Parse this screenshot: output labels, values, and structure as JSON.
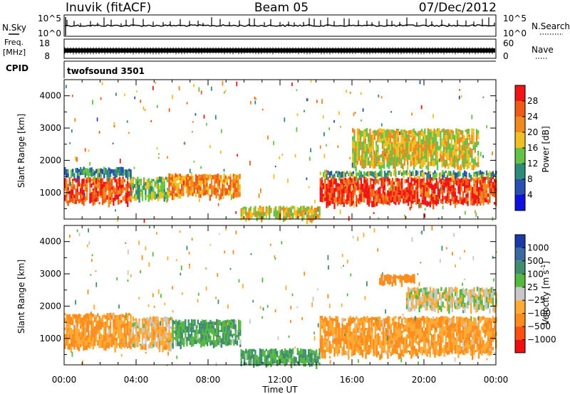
{
  "header": {
    "station": "Inuvik (fitACF)",
    "beam": "Beam 05",
    "date": "07/Dec/2012"
  },
  "param_panels": {
    "nsky": {
      "label": "N.Sky",
      "ticks": [
        "10^5",
        "10^0"
      ],
      "right_label": "N.Search",
      "right_ticks": [
        "10^5",
        "10^0"
      ]
    },
    "freq": {
      "label_top": "Freq.",
      "label_bottom": "[MHz]",
      "ticks": [
        "18",
        "8"
      ],
      "right_label": "Nave",
      "right_ticks": [
        "60",
        "0"
      ]
    },
    "cpid": {
      "label": "CPID",
      "value": "twofsound 3501"
    }
  },
  "axes": {
    "ylabel": "Slant Range [km]",
    "xlabel": "Time UT",
    "yticks": [
      "1000",
      "2000",
      "3000",
      "4000"
    ],
    "xticks": [
      "00:00",
      "04:00",
      "08:00",
      "12:00",
      "16:00",
      "20:00",
      "00:00"
    ]
  },
  "colorbars": {
    "power": {
      "label": "Power [dB]",
      "ticks": [
        "4",
        "8",
        "12",
        "16",
        "20",
        "24",
        "28"
      ],
      "colors": [
        "#1010e0",
        "#2850b0",
        "#2e8b7a",
        "#66c244",
        "#f0c020",
        "#f08a1e",
        "#f05a14",
        "#f01414"
      ]
    },
    "velocity": {
      "label_main": "Velocity [m s",
      "label_sup": "-1",
      "label_end": "]",
      "ticks": [
        "1000",
        "500",
        "100",
        "25",
        "−25",
        "−100",
        "−500",
        "−1000"
      ],
      "colors": [
        "#1a3aa8",
        "#3a6aa0",
        "#3f8f6f",
        "#55b840",
        "#c8c8c8",
        "#ffaa33",
        "#ff8c1a",
        "#ff5010",
        "#ee1010"
      ]
    }
  },
  "chart_data": [
    {
      "type": "heatmap",
      "name": "Power",
      "units": "dB",
      "x_range_hours": [
        0,
        24
      ],
      "y_range_km": [
        180,
        4500
      ],
      "regions": [
        {
          "t": [
            0.0,
            3.7
          ],
          "r": [
            700,
            1500
          ],
          "value": 26
        },
        {
          "t": [
            0.0,
            3.7
          ],
          "r": [
            1500,
            1800
          ],
          "value": 10
        },
        {
          "t": [
            3.7,
            5.8
          ],
          "r": [
            800,
            1500
          ],
          "value": 14
        },
        {
          "t": [
            5.8,
            9.8
          ],
          "r": [
            900,
            1600
          ],
          "value": 22
        },
        {
          "t": [
            9.8,
            14.2
          ],
          "r": [
            200,
            600
          ],
          "value": 18
        },
        {
          "t": [
            14.2,
            24.0
          ],
          "r": [
            650,
            1500
          ],
          "value": 28
        },
        {
          "t": [
            14.2,
            24.0
          ],
          "r": [
            1500,
            1700
          ],
          "value": 12
        },
        {
          "t": [
            16.0,
            23.0
          ],
          "r": [
            1800,
            3000
          ],
          "value": 18
        }
      ]
    },
    {
      "type": "heatmap",
      "name": "Velocity",
      "units": "m s-1",
      "x_range_hours": [
        0,
        24
      ],
      "y_range_km": [
        180,
        4500
      ],
      "regions": [
        {
          "t": [
            0.0,
            3.7
          ],
          "r": [
            700,
            1800
          ],
          "value": -100
        },
        {
          "t": [
            3.7,
            6.0
          ],
          "r": [
            700,
            1700
          ],
          "value": -50
        },
        {
          "t": [
            6.0,
            9.8
          ],
          "r": [
            800,
            1600
          ],
          "value": 100
        },
        {
          "t": [
            9.8,
            14.2
          ],
          "r": [
            200,
            700
          ],
          "value": 100
        },
        {
          "t": [
            14.2,
            24.0
          ],
          "r": [
            500,
            1700
          ],
          "value": -100
        },
        {
          "t": [
            19.0,
            24.0
          ],
          "r": [
            1900,
            2600
          ],
          "value": 0
        },
        {
          "t": [
            17.5,
            19.5
          ],
          "r": [
            2700,
            3000
          ],
          "value": -300
        }
      ]
    }
  ]
}
